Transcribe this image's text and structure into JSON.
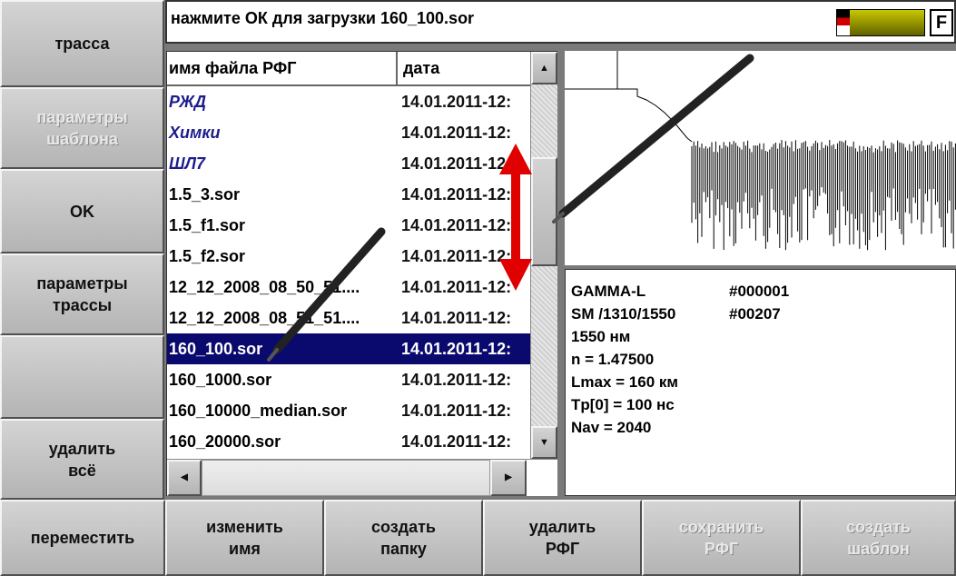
{
  "status": "нажмите ОК для загрузки 160_100.sor",
  "indicator": "F",
  "left_buttons": [
    {
      "lines": [
        "трасса"
      ]
    },
    {
      "lines": [
        "параметры",
        "шаблона"
      ],
      "disabled": true
    },
    {
      "lines": [
        "OK"
      ]
    },
    {
      "lines": [
        "параметры",
        "трассы"
      ]
    },
    {
      "lines": []
    },
    {
      "lines": [
        "удалить",
        "всё"
      ]
    }
  ],
  "file_list": {
    "columns": [
      "имя файла РФГ",
      "дата"
    ],
    "selected": 8,
    "rows": [
      {
        "name": "РЖД",
        "date": "14.01.2011-12:",
        "folder": true
      },
      {
        "name": "Химки",
        "date": "14.01.2011-12:",
        "folder": true
      },
      {
        "name": "ШЛ7",
        "date": "14.01.2011-12:",
        "folder": true
      },
      {
        "name": "1.5_3.sor",
        "date": "14.01.2011-12:"
      },
      {
        "name": "1.5_f1.sor",
        "date": "14.01.2011-12:"
      },
      {
        "name": "1.5_f2.sor",
        "date": "14.01.2011-12:"
      },
      {
        "name": "12_12_2008_08_50_51....",
        "date": "14.01.2011-12:"
      },
      {
        "name": "12_12_2008_08_51_51....",
        "date": "14.01.2011-12:"
      },
      {
        "name": "160_100.sor",
        "date": "14.01.2011-12:"
      },
      {
        "name": "160_1000.sor",
        "date": "14.01.2011-12:"
      },
      {
        "name": "160_10000_median.sor",
        "date": "14.01.2011-12:"
      },
      {
        "name": "160_20000.sor",
        "date": "14.01.2011-12:"
      }
    ]
  },
  "info": [
    [
      "GAMMA-L",
      "#000001"
    ],
    [
      "SM /1310/1550",
      "#00207"
    ],
    [
      "1550 нм"
    ],
    [
      "n = 1.47500"
    ],
    [
      "Lmax = 160 км"
    ],
    [
      "Tp[0] = 100 нс"
    ],
    [
      "Nav = 2040"
    ]
  ],
  "bottom_buttons": [
    {
      "lines": [
        "переместить"
      ]
    },
    {
      "lines": [
        "изменить",
        "имя"
      ]
    },
    {
      "lines": [
        "создать",
        "папку"
      ]
    },
    {
      "lines": [
        "удалить",
        "РФГ"
      ]
    },
    {
      "lines": [
        "сохранить",
        "РФГ"
      ],
      "disabled": true
    },
    {
      "lines": [
        "создать",
        "шаблон"
      ],
      "disabled": true
    }
  ]
}
